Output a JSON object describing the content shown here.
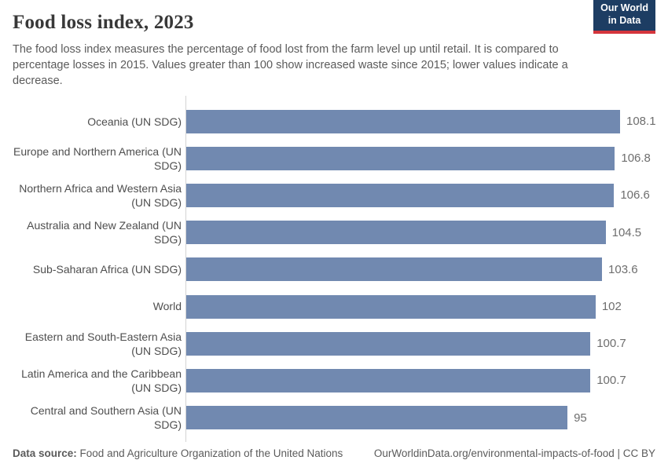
{
  "header": {
    "title": "Food loss index, 2023",
    "subtitle": "The food loss index measures the percentage of food lost from the farm level up until retail. It is compared to percentage losses in 2015. Values greater than 100 show increased waste since 2015; lower values indicate a decrease.",
    "logo": {
      "line1": "Our World",
      "line2": "in Data"
    }
  },
  "chart_data": {
    "type": "bar",
    "orientation": "horizontal",
    "title": "Food loss index, 2023",
    "categories": [
      "Oceania (UN SDG)",
      "Europe and Northern America (UN SDG)",
      "Northern Africa and Western Asia (UN SDG)",
      "Australia and New Zealand (UN SDG)",
      "Sub-Saharan Africa (UN SDG)",
      "World",
      "Eastern and South-Eastern Asia (UN SDG)",
      "Latin America and the Caribbean (UN SDG)",
      "Central and Southern Asia (UN SDG)"
    ],
    "values": [
      108.1,
      106.8,
      106.6,
      104.5,
      103.6,
      102,
      100.7,
      100.7,
      95
    ],
    "value_labels": [
      "108.1",
      "106.8",
      "106.6",
      "104.5",
      "103.6",
      "102",
      "100.7",
      "100.7",
      "95"
    ],
    "xlim": [
      0,
      108.1
    ],
    "bar_color": "#7189b0",
    "grid": false,
    "legend": false
  },
  "footer": {
    "source_label": "Data source:",
    "source_value": "Food and Agriculture Organization of the United Nations",
    "rights": "OurWorldinData.org/environmental-impacts-of-food | CC BY"
  },
  "colors": {
    "bar": "#7189b0",
    "logo_navy": "#1d3d63",
    "logo_red": "#d4353c",
    "axis": "#d4d4d4",
    "text_dark": "#383838",
    "text_gray": "#5b5b5b"
  }
}
